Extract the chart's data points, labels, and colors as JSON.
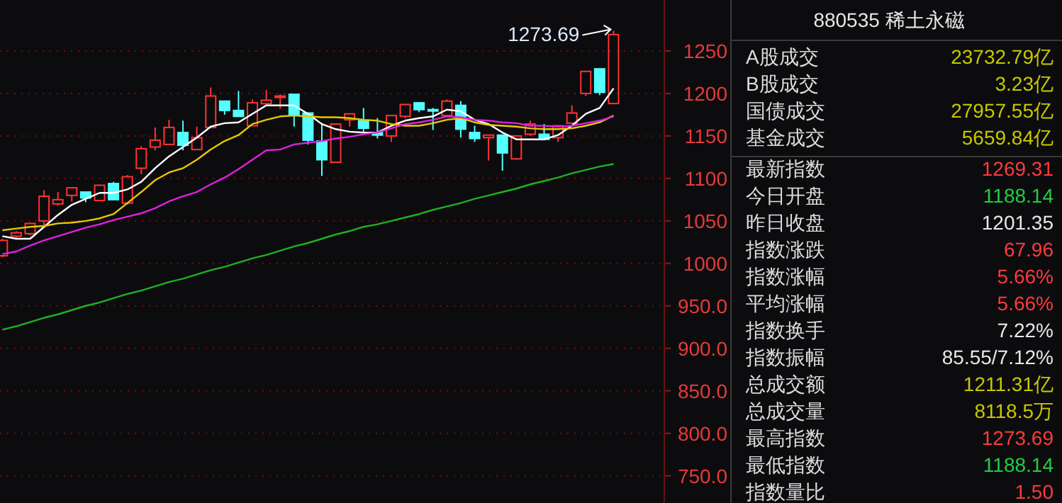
{
  "chart_data": [
    {
      "type": "candlestick",
      "categories": [
        null,
        null,
        null,
        null,
        null,
        null,
        null,
        null,
        null,
        null,
        null,
        null,
        null,
        null,
        null,
        null,
        null,
        null,
        null,
        null,
        null,
        null,
        null,
        null,
        null,
        null,
        null,
        null,
        null,
        null,
        null,
        null,
        null,
        null,
        null,
        null,
        null,
        null,
        null,
        null,
        null,
        null,
        null,
        null,
        null
      ],
      "ohlc": [
        [
          1009,
          1029,
          1007,
          1027
        ],
        [
          1032,
          1038,
          1030,
          1036
        ],
        [
          1035,
          1048,
          1033,
          1047
        ],
        [
          1050,
          1086,
          1044,
          1079
        ],
        [
          1070,
          1084,
          1068,
          1075
        ],
        [
          1080,
          1089,
          1073,
          1089
        ],
        [
          1084,
          1084,
          1072,
          1077
        ],
        [
          1074,
          1092,
          1074,
          1092
        ],
        [
          1094,
          1096,
          1075,
          1075
        ],
        [
          1071,
          1104,
          1069,
          1102
        ],
        [
          1112,
          1138,
          1105,
          1135
        ],
        [
          1137,
          1160,
          1133,
          1145
        ],
        [
          1140,
          1169,
          1140,
          1160
        ],
        [
          1154,
          1168,
          1133,
          1139
        ],
        [
          1134,
          1161,
          1134,
          1148
        ],
        [
          1160,
          1207,
          1159,
          1197
        ],
        [
          1191,
          1191,
          1175,
          1180
        ],
        [
          1180,
          1203,
          1173,
          1173
        ],
        [
          1162,
          1193,
          1162,
          1189
        ],
        [
          1188,
          1204,
          1186,
          1192
        ],
        [
          1196,
          1199,
          1182,
          1197
        ],
        [
          1199,
          1199,
          1161,
          1174
        ],
        [
          1177,
          1177,
          1140,
          1145
        ],
        [
          1144,
          1165,
          1103,
          1122
        ],
        [
          1119,
          1164,
          1119,
          1164
        ],
        [
          1169,
          1176,
          1161,
          1176
        ],
        [
          1168,
          1183,
          1155,
          1159
        ],
        [
          1154,
          1171,
          1147,
          1151
        ],
        [
          1150,
          1174,
          1143,
          1174
        ],
        [
          1173,
          1187,
          1171,
          1187
        ],
        [
          1189,
          1189,
          1178,
          1181
        ],
        [
          1181,
          1183,
          1157,
          1180
        ],
        [
          1174,
          1193,
          1172,
          1191
        ],
        [
          1186,
          1191,
          1148,
          1158
        ],
        [
          1154,
          1162,
          1143,
          1147
        ],
        [
          1148,
          1151,
          1121,
          1151
        ],
        [
          1151,
          1151,
          1109,
          1130
        ],
        [
          1123,
          1151,
          1122,
          1150
        ],
        [
          1152,
          1168,
          1150,
          1164
        ],
        [
          1152,
          1164,
          1145,
          1146
        ],
        [
          1148,
          1162,
          1143,
          1162
        ],
        [
          1165,
          1186,
          1165,
          1177
        ],
        [
          1200,
          1226,
          1197,
          1226
        ],
        [
          1229,
          1229,
          1198,
          1201.35
        ],
        [
          1188.14,
          1273.69,
          1188.14,
          1269.31
        ]
      ],
      "colors": [
        "#ff3232",
        "#ff3232",
        "#ff3232",
        "#ff3232",
        "#ff3232",
        "#ff3232",
        "#54ffff",
        "#ff3232",
        "#54ffff",
        "#ff3232",
        "#ff3232",
        "#ff3232",
        "#ff3232",
        "#54ffff",
        "#ff3232",
        "#ff3232",
        "#54ffff",
        "#54ffff",
        "#ff3232",
        "#ff3232",
        "#ff3232",
        "#54ffff",
        "#54ffff",
        "#54ffff",
        "#ff3232",
        "#ff3232",
        "#54ffff",
        "#54ffff",
        "#ff3232",
        "#ff3232",
        "#54ffff",
        "#54ffff",
        "#ff3232",
        "#54ffff",
        "#54ffff",
        "#ff3232",
        "#54ffff",
        "#ff3232",
        "#ff3232",
        "#54ffff",
        "#ff3232",
        "#ff3232",
        "#ff3232",
        "#54ffff",
        "#ff3232"
      ],
      "series": [
        {
          "type": "line",
          "color": "#ffffff",
          "values": [
            1032,
            1029,
            1029,
            1043,
            1057,
            1069,
            1076,
            1083,
            1083,
            1087,
            1096,
            1112,
            1126,
            1137,
            1148,
            1161,
            1165,
            1166,
            1176,
            1186,
            1186,
            1186,
            1176,
            1164,
            1158,
            1155,
            1154,
            1154,
            1162,
            1168,
            1171,
            1173,
            1181,
            1179,
            1169,
            1164,
            1154,
            1146,
            1146,
            1146,
            1151,
            1162,
            1176,
            1183,
            1206
          ]
        },
        {
          "type": "line",
          "color": "#e6c800",
          "values": [
            1039,
            1041,
            1043,
            1044,
            1047,
            1048,
            1050,
            1053,
            1058,
            1071,
            1084,
            1098,
            1107,
            1112,
            1122,
            1134,
            1144,
            1151,
            1164,
            1169,
            1173,
            1174,
            1173,
            1172,
            1172,
            1171,
            1169,
            1168,
            1164,
            1162,
            1162,
            1165,
            1169,
            1171,
            1166,
            1163,
            1162,
            1161,
            1159,
            1158,
            1158,
            1159,
            1162,
            1166,
            1174
          ]
        },
        {
          "type": "line",
          "color": "#e020e0",
          "values": [
            1011,
            1014,
            1021,
            1027,
            1032,
            1037,
            1042,
            1046,
            1051,
            1055,
            1059,
            1065,
            1073,
            1079,
            1084,
            1093,
            1101,
            1111,
            1122,
            1133,
            1134,
            1140,
            1142,
            1144,
            1147,
            1149,
            1152,
            1154,
            1159,
            1164,
            1166,
            1169,
            1173,
            1172,
            1169,
            1168,
            1166,
            1165,
            1162,
            1162,
            1161,
            1162,
            1165,
            1168,
            1173
          ]
        },
        {
          "type": "line",
          "color": "#20b020",
          "values": [
            922,
            926,
            931,
            936,
            940,
            945,
            950,
            954,
            959,
            964,
            968,
            973,
            978,
            982,
            987,
            992,
            996,
            1001,
            1006,
            1010,
            1015,
            1020,
            1024,
            1029,
            1034,
            1038,
            1043,
            1046,
            1050,
            1054,
            1058,
            1063,
            1067,
            1071,
            1076,
            1080,
            1084,
            1088,
            1093,
            1097,
            1101,
            1106,
            1110,
            1114,
            1117
          ]
        }
      ],
      "ylim": [
        718,
        1310
      ],
      "yticks": [
        {
          "value": 750,
          "label": "750.0"
        },
        {
          "value": 800,
          "label": "800.0"
        },
        {
          "value": 850,
          "label": "850.0"
        },
        {
          "value": 900,
          "label": "900.0"
        },
        {
          "value": 950,
          "label": "950.0"
        },
        1000,
        1050,
        1100,
        1150,
        1200,
        1250
      ],
      "grid": "y",
      "annotations": [
        "1273.69"
      ]
    },
    {
      "type": "other",
      "title": "880535 稀土永磁",
      "categories": [
        "A股成交",
        "B股成交",
        "国债成交",
        "基金成交",
        "最新指数",
        "今日开盘",
        "昨日收盘",
        "指数涨跌",
        "指数涨幅",
        "平均涨幅",
        "指数换手",
        "指数振幅",
        "总成交额",
        "总成交量",
        "最高指数",
        "最低指数",
        "指数量比"
      ],
      "value_labels": [
        "23732.79亿",
        "3.23亿",
        "27957.55亿",
        "5659.84亿",
        "1269.31",
        "1188.14",
        "1201.35",
        "67.96",
        "5.66%",
        "5.66%",
        "7.22%",
        "85.55/7.12%",
        "1211.31亿",
        "8118.5万",
        "1273.69",
        "1188.14",
        "1.50"
      ],
      "colors": [
        "#c8c800",
        "#c8c800",
        "#c8c800",
        "#c8c800",
        "#ff3b3b",
        "#20d040",
        "#e8e8e8",
        "#ff3b3b",
        "#ff3b3b",
        "#ff3b3b",
        "#e8e8e8",
        "#e8e8e8",
        "#c8c800",
        "#c8c800",
        "#ff3b3b",
        "#20d040",
        "#ff3b3b"
      ]
    }
  ]
}
